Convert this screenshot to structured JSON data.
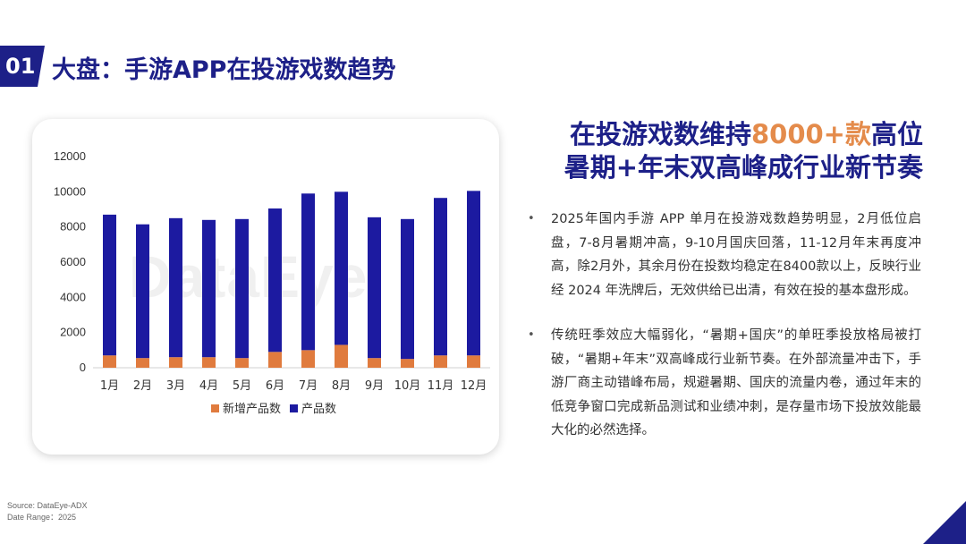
{
  "header": {
    "section_number": "01",
    "title": "大盘：手游APP在投游戏数趋势"
  },
  "headline": {
    "line1_prefix": "在投游戏数维持",
    "line1_highlight": "8000+款",
    "line1_suffix": "高位",
    "line2": "暑期+年末双高峰成行业新节奏"
  },
  "bullets": [
    "2025年国内手游 APP 单月在投游戏数趋势明显，2月低位启盘，7-8月暑期冲高，9-10月国庆回落，11-12月年末再度冲高，除2月外，其余月份在投数均稳定在8400款以上，反映行业经 2024 年洗牌后，无效供给已出清，有效在投的基本盘形成。",
    "传统旺季效应大幅弱化，“暑期+国庆”的单旺季投放格局被打破，“暑期+年末”双高峰成行业新节奏。在外部流量冲击下，手游厂商主动错峰布局，规避暑期、国庆的流量内卷，通过年末的低竞争窗口完成新品测试和业绩冲刺，是存量市场下投放效能最大化的必然选择。"
  ],
  "watermark": "DataEye",
  "footer": {
    "source": "Source: DataEye-ADX",
    "date_range": "Date Range：2025"
  },
  "colors": {
    "brand_navy": "#1d2088",
    "accent_orange": "#e48b4b",
    "bar_new": "#e07b3e",
    "bar_total": "#1c1aa0"
  },
  "chart_data": {
    "type": "bar",
    "stacked": true,
    "categories": [
      "1月",
      "2月",
      "3月",
      "4月",
      "5月",
      "6月",
      "7月",
      "8月",
      "9月",
      "10月",
      "11月",
      "12月"
    ],
    "series": [
      {
        "name": "新增产品数",
        "values": [
          700,
          550,
          600,
          600,
          550,
          900,
          1000,
          1300,
          550,
          500,
          700,
          700
        ]
      },
      {
        "name": "产品数",
        "values": [
          8000,
          7600,
          7900,
          7800,
          7900,
          8150,
          8900,
          8700,
          8000,
          7950,
          8950,
          9350
        ]
      }
    ],
    "ylim": [
      0,
      12000
    ],
    "yticks": [
      0,
      2000,
      4000,
      6000,
      8000,
      10000,
      12000
    ],
    "grid": false,
    "legend_position": "bottom"
  }
}
